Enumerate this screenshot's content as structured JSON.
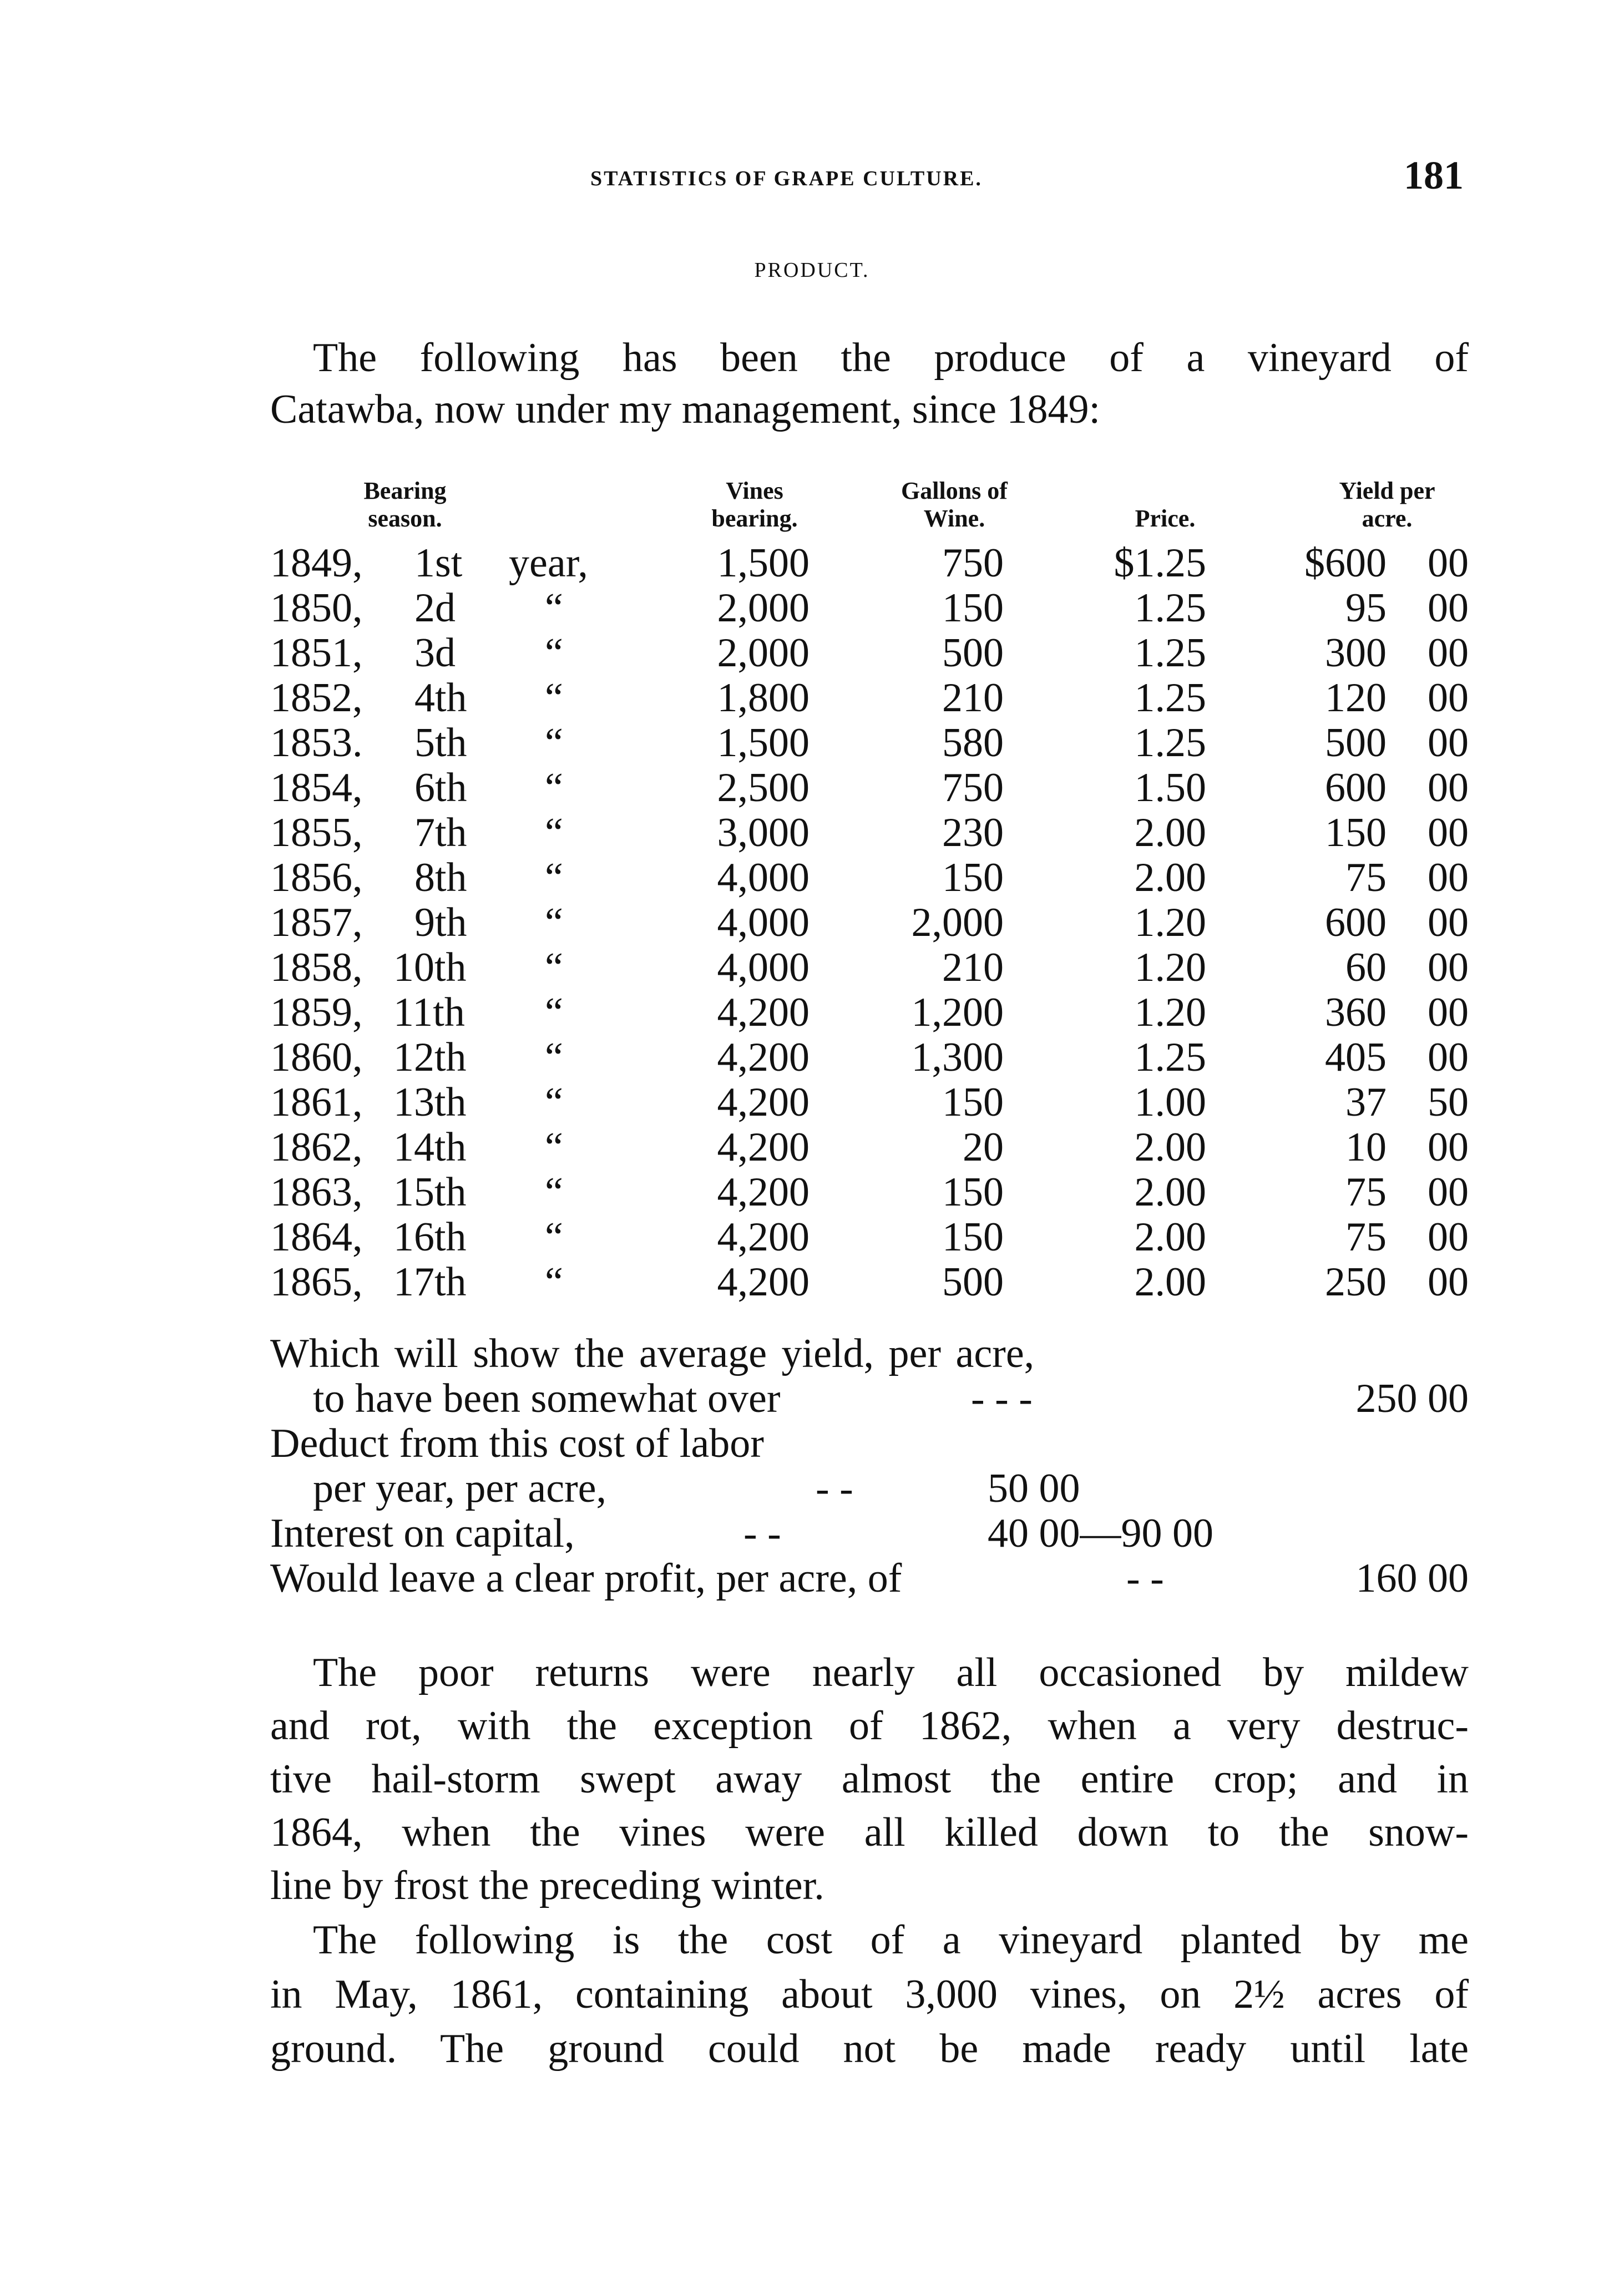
{
  "header": {
    "running_title": "STATISTICS OF GRAPE CULTURE.",
    "page_number": "181"
  },
  "section_title": "PRODUCT.",
  "intro": [
    "The following has been the produce of a vineyard of",
    "Catawba, now under my management, since 1849:"
  ],
  "table": {
    "columns": [
      [
        "Bearing",
        "season."
      ],
      [
        "Vines",
        "bearing."
      ],
      [
        "Gallons of",
        "Wine."
      ],
      [
        "",
        "Price."
      ],
      [
        "Yield per",
        "acre."
      ]
    ],
    "rows": [
      [
        "1849,",
        "1st",
        "year,",
        "1,500",
        "750",
        "$1.25",
        "$600",
        "00"
      ],
      [
        "1850,",
        "2d",
        "“",
        "2,000",
        "150",
        "1.25",
        "95",
        "00"
      ],
      [
        "1851,",
        "3d",
        "“",
        "2,000",
        "500",
        "1.25",
        "300",
        "00"
      ],
      [
        "1852,",
        "4th",
        "“",
        "1,800",
        "210",
        "1.25",
        "120",
        "00"
      ],
      [
        "1853.",
        "5th",
        "“",
        "1,500",
        "580",
        "1.25",
        "500",
        "00"
      ],
      [
        "1854,",
        "6th",
        "“",
        "2,500",
        "750",
        "1.50",
        "600",
        "00"
      ],
      [
        "1855,",
        "7th",
        "“",
        "3,000",
        "230",
        "2.00",
        "150",
        "00"
      ],
      [
        "1856,",
        "8th",
        "“",
        "4,000",
        "150",
        "2.00",
        "75",
        "00"
      ],
      [
        "1857,",
        "9th",
        "“",
        "4,000",
        "2,000",
        "1.20",
        "600",
        "00"
      ],
      [
        "1858,",
        "10th",
        "“",
        "4,000",
        "210",
        "1.20",
        "60",
        "00"
      ],
      [
        "1859,",
        "11th",
        "“",
        "4,200",
        "1,200",
        "1.20",
        "360",
        "00"
      ],
      [
        "1860,",
        "12th",
        "“",
        "4,200",
        "1,300",
        "1.25",
        "405",
        "00"
      ],
      [
        "1861,",
        "13th",
        "“",
        "4,200",
        "150",
        "1.00",
        "37",
        "50"
      ],
      [
        "1862,",
        "14th",
        "“",
        "4,200",
        "20",
        "2.00",
        "10",
        "00"
      ],
      [
        "1863,",
        "15th",
        "“",
        "4,200",
        "150",
        "2.00",
        "75",
        "00"
      ],
      [
        "1864,",
        "16th",
        "“",
        "4,200",
        "150",
        "2.00",
        "75",
        "00"
      ],
      [
        "1865,",
        "17th",
        "“",
        "4,200",
        "500",
        "2.00",
        "250",
        "00"
      ]
    ]
  },
  "summary": {
    "line1": "Which  will show  the average yield, per acre,",
    "line2": "to have been somewhat over",
    "line2_dots": "-      -      -",
    "line2_value": "250  00",
    "line3": "Deduct from this cost of labor",
    "line4": "per year, per acre,",
    "line4_dots": "-      -",
    "line4_value": "50  00",
    "line5": "Interest on capital,",
    "line5_dots": "-      -",
    "line5_value": "40  00—90  00",
    "line6": "Would leave a clear profit, per acre, of",
    "line6_dots": "-      -",
    "line6_value": "160  00"
  },
  "paragraph2": [
    "The poor returns were nearly all occasioned by mildew",
    "and rot, with the exception of 1862, when a very destruc-",
    "tive hail-storm swept away almost the entire crop; and in",
    "1864, when the vines were all killed down to the snow-",
    "line by frost the preceding winter."
  ],
  "paragraph3": [
    "The following is the cost of a vineyard planted by me",
    "in May, 1861, containing about 3,000 vines, on 2½ acres of",
    "ground.  The ground could not be made ready until late"
  ]
}
